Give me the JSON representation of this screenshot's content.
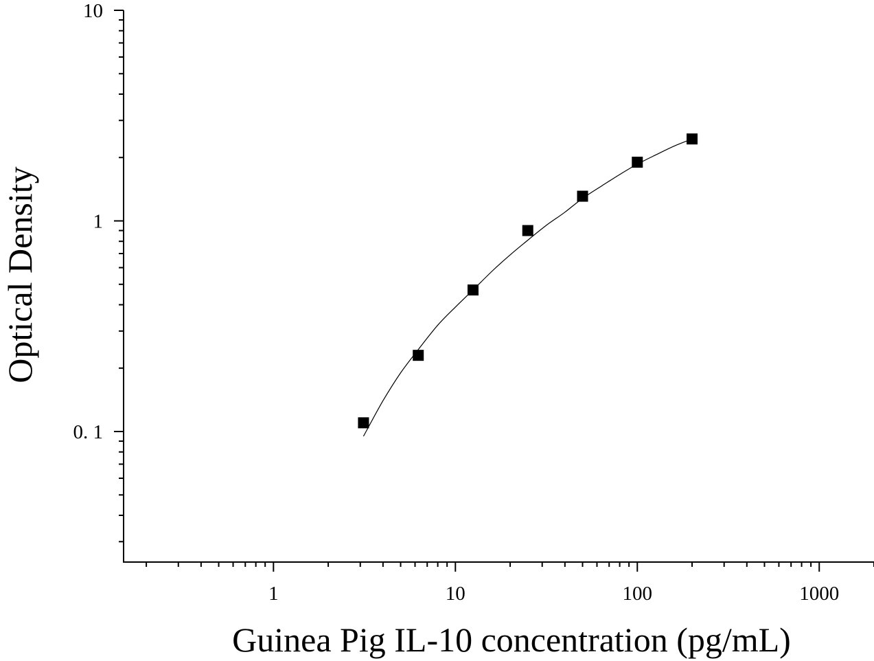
{
  "chart_data": {
    "type": "scatter",
    "title": "",
    "xlabel": "Guinea Pig IL-10 concentration (pg/mL)",
    "ylabel": "Optical Density",
    "x_scale": "log",
    "y_scale": "log",
    "xlim": [
      0.15,
      2000
    ],
    "ylim": [
      0.024,
      10
    ],
    "x_ticks": [
      {
        "value": 1,
        "label": "1"
      },
      {
        "value": 10,
        "label": "10"
      },
      {
        "value": 100,
        "label": "100"
      },
      {
        "value": 1000,
        "label": "1000"
      }
    ],
    "y_ticks": [
      {
        "value": 0.1,
        "label": "0. 1"
      },
      {
        "value": 1,
        "label": "1"
      },
      {
        "value": 10,
        "label": "10"
      }
    ],
    "grid": false,
    "legend": "none",
    "series": [
      {
        "marker": "square",
        "color": "#000000",
        "points": [
          {
            "x": 3.125,
            "y": 0.11
          },
          {
            "x": 6.25,
            "y": 0.23
          },
          {
            "x": 12.5,
            "y": 0.47
          },
          {
            "x": 25,
            "y": 0.9
          },
          {
            "x": 50,
            "y": 1.31
          },
          {
            "x": 100,
            "y": 1.9
          },
          {
            "x": 200,
            "y": 2.45
          }
        ]
      }
    ],
    "fit_curve": {
      "style": "thin-line",
      "color": "#000000",
      "points": [
        {
          "x": 3.125,
          "y": 0.095
        },
        {
          "x": 4,
          "y": 0.14
        },
        {
          "x": 5,
          "y": 0.19
        },
        {
          "x": 6.25,
          "y": 0.245
        },
        {
          "x": 8,
          "y": 0.32
        },
        {
          "x": 10,
          "y": 0.39
        },
        {
          "x": 12.5,
          "y": 0.47
        },
        {
          "x": 16,
          "y": 0.58
        },
        {
          "x": 20,
          "y": 0.69
        },
        {
          "x": 25,
          "y": 0.81
        },
        {
          "x": 32,
          "y": 0.96
        },
        {
          "x": 40,
          "y": 1.1
        },
        {
          "x": 50,
          "y": 1.28
        },
        {
          "x": 64,
          "y": 1.47
        },
        {
          "x": 80,
          "y": 1.66
        },
        {
          "x": 100,
          "y": 1.86
        },
        {
          "x": 128,
          "y": 2.07
        },
        {
          "x": 160,
          "y": 2.27
        },
        {
          "x": 200,
          "y": 2.45
        }
      ]
    }
  }
}
